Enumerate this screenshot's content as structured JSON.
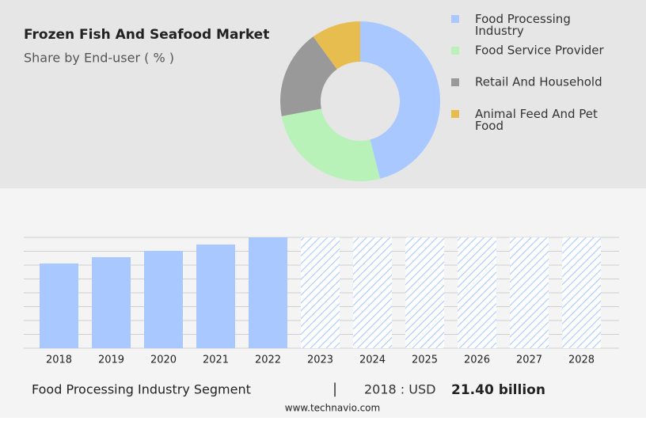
{
  "chart_data": [
    {
      "type": "pie",
      "title": "Frozen Fish And Seafood Market",
      "subtitle": "Share by End-user ( % )",
      "categories": [
        "Food Processing Industry",
        "Food Service Provider",
        "Retail And Household",
        "Animal Feed And Pet Food"
      ],
      "values": [
        46,
        26,
        18,
        10
      ],
      "colors": [
        "#a8c8ff",
        "#b8f2b8",
        "#999999",
        "#e8bd4f"
      ]
    },
    {
      "type": "bar",
      "categories": [
        "2018",
        "2019",
        "2020",
        "2021",
        "2022",
        "2023",
        "2024",
        "2025",
        "2026",
        "2027",
        "2028"
      ],
      "values": [
        21.4,
        23.0,
        24.6,
        26.2,
        28.0,
        null,
        null,
        null,
        null,
        null,
        null
      ],
      "value_labels": [
        "21.40 billion",
        null,
        null,
        null,
        null,
        null,
        null,
        null,
        null,
        null,
        null
      ],
      "color": "#a8c8ff",
      "ylim": [
        0,
        28
      ],
      "grid": true
    }
  ],
  "footer": {
    "segment": "Food Processing Industry Segment",
    "year_label": "2018 : USD",
    "value": "21.40 billion",
    "website": "www.technavio.com"
  }
}
